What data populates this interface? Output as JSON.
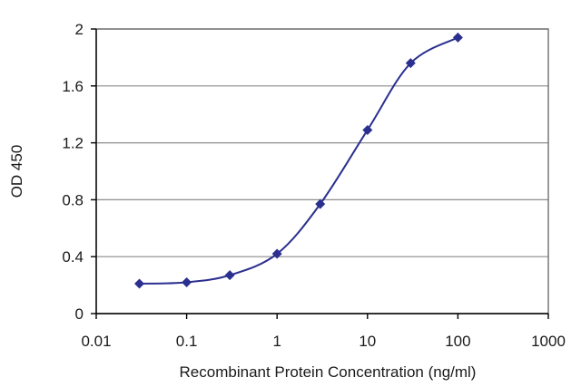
{
  "chart_data": {
    "type": "line",
    "xscale": "log",
    "xlabel": "Recombinant Protein Concentration (ng/ml)",
    "ylabel": "OD 450",
    "xlim": [
      0.01,
      1000
    ],
    "ylim": [
      0,
      2
    ],
    "x_ticks": [
      "0.01",
      "0.1",
      "1",
      "10",
      "100",
      "1000"
    ],
    "y_ticks": [
      "0",
      "0.4",
      "0.8",
      "1.2",
      "1.6",
      "2"
    ],
    "grid": "horizontal",
    "legend": "none",
    "series": [
      {
        "color": "#2b2f8f",
        "marker": "diamond",
        "x": [
          0.03,
          0.1,
          0.3,
          1,
          3,
          10,
          30,
          100
        ],
        "y": [
          0.21,
          0.22,
          0.27,
          0.42,
          0.77,
          1.29,
          1.76,
          1.94
        ]
      }
    ]
  }
}
